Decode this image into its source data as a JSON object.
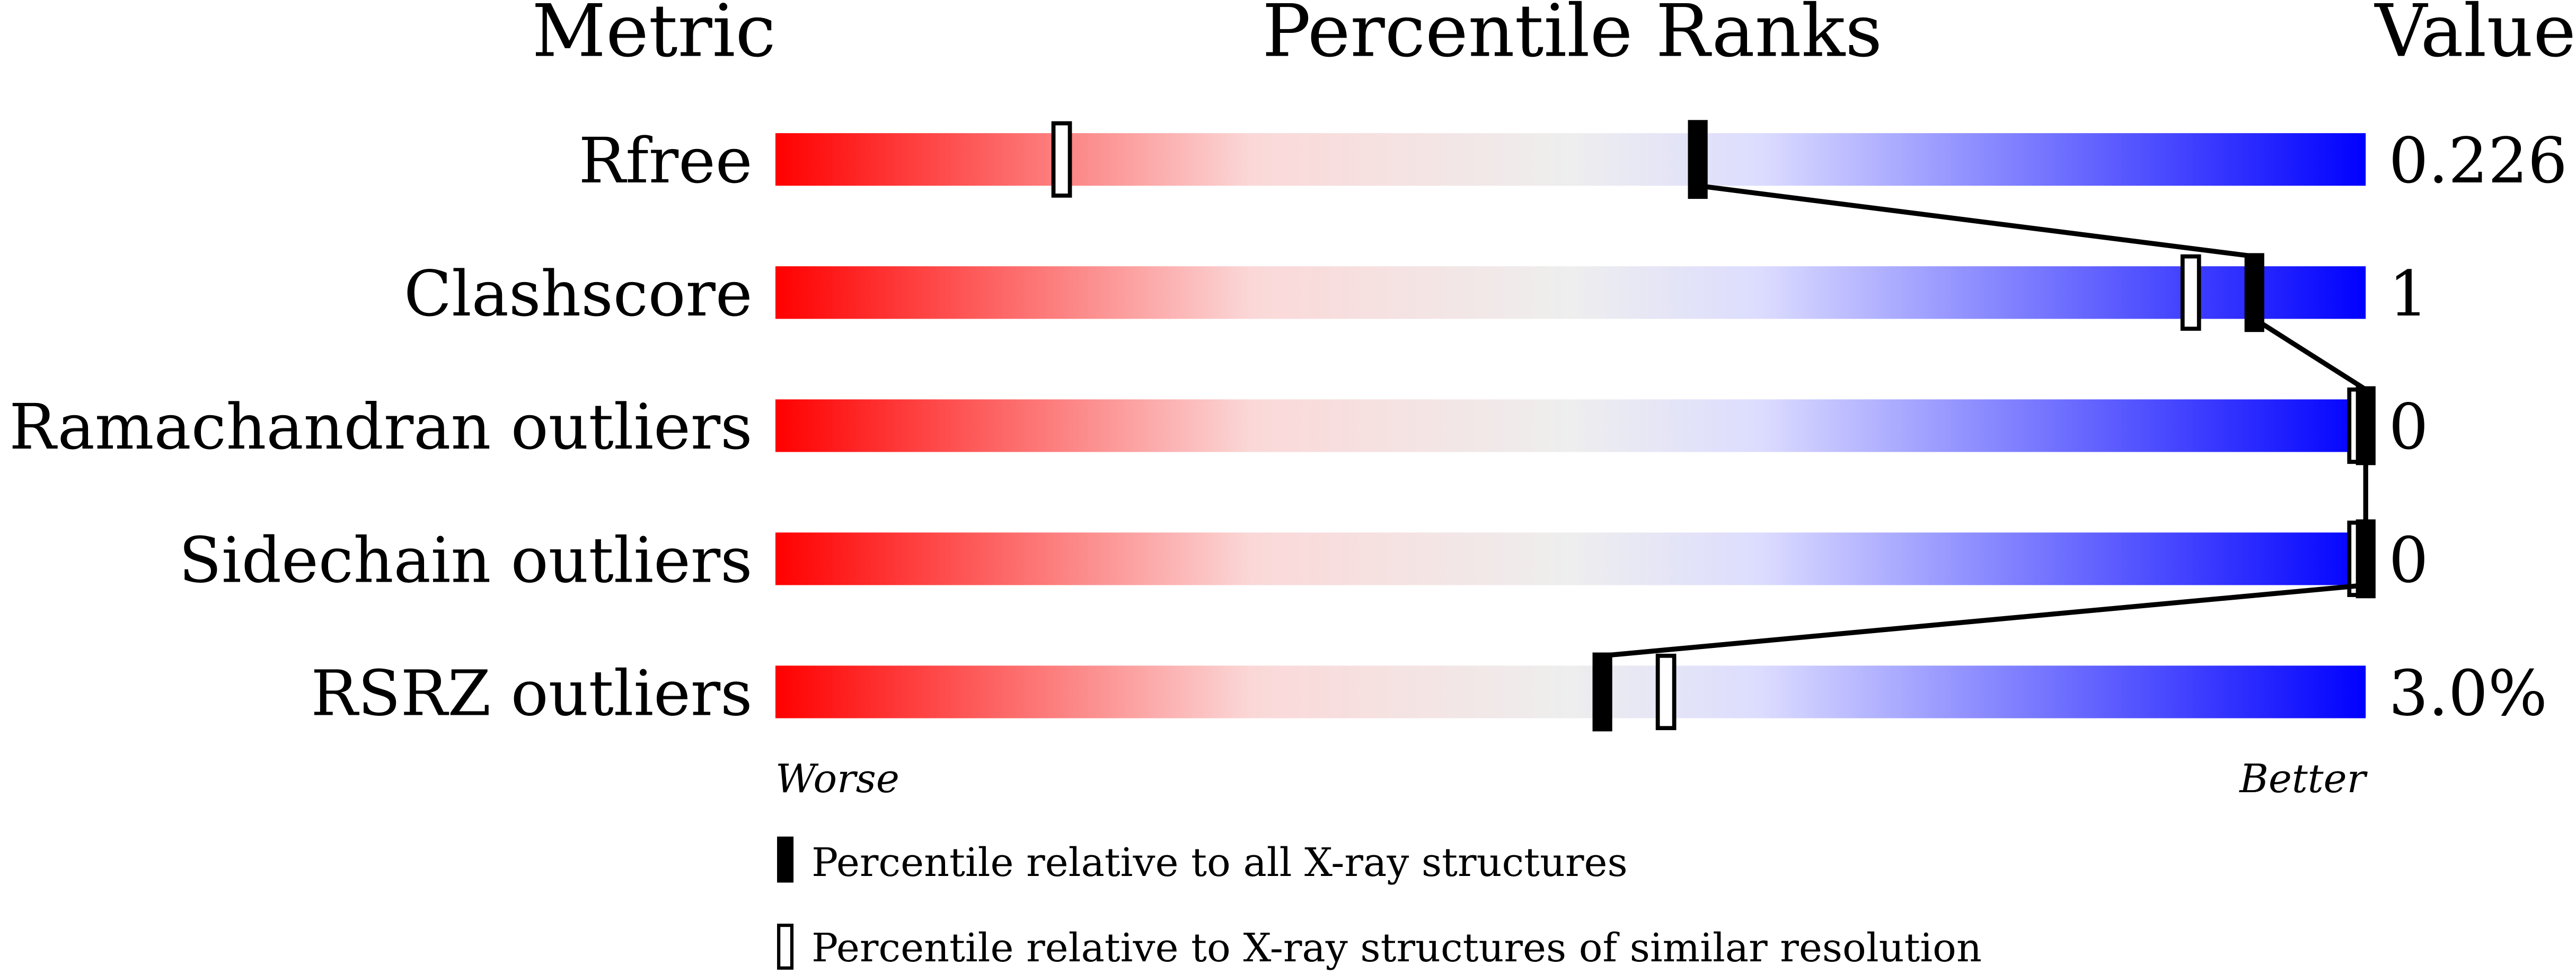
{
  "chart_data": {
    "type": "percentile-slider",
    "headers": {
      "metric": "Metric",
      "percentile": "Percentile Ranks",
      "value": "Value"
    },
    "axis": {
      "min": 0,
      "max": 100,
      "left_label": "Worse",
      "right_label": "Better"
    },
    "gradient_colors": [
      "#ff0000",
      "#fbd4d4",
      "#eeeeee",
      "#dcdcff",
      "#0000ff"
    ],
    "metrics": [
      {
        "name": "Rfree",
        "value": "0.226",
        "percentile_all": 58,
        "percentile_similar": 18
      },
      {
        "name": "Clashscore",
        "value": "1",
        "percentile_all": 93,
        "percentile_similar": 89
      },
      {
        "name": "Ramachandran outliers",
        "value": "0",
        "percentile_all": 100,
        "percentile_similar": 100
      },
      {
        "name": "Sidechain outliers",
        "value": "0",
        "percentile_all": 100,
        "percentile_similar": 100
      },
      {
        "name": "RSRZ outliers",
        "value": "3.0%",
        "percentile_all": 52,
        "percentile_similar": 56
      }
    ],
    "legend": {
      "all": "Percentile relative to all X-ray structures",
      "similar": "Percentile relative to X-ray structures of similar resolution"
    }
  }
}
